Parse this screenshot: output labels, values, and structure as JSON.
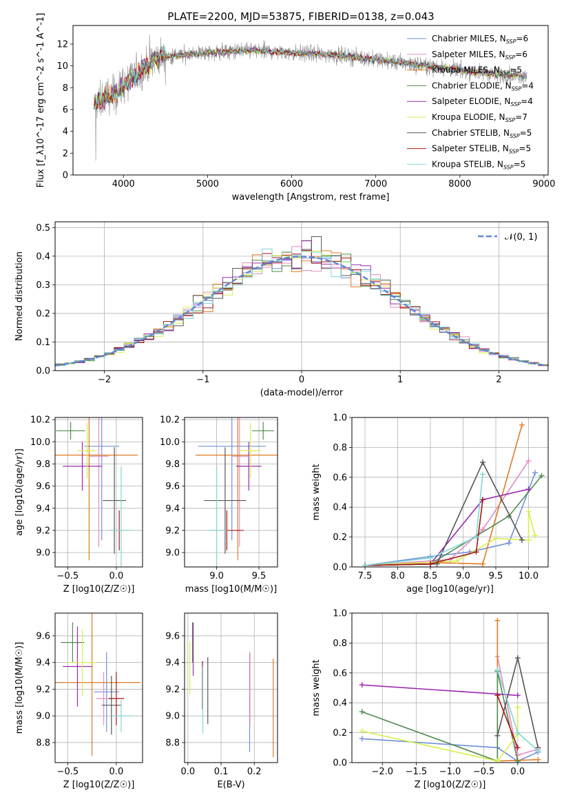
{
  "figure": {
    "title": "PLATE=2200, MJD=53875, FIBERID=0138, z=0.043"
  },
  "legend": [
    {
      "label": "Chabrier MILES, N_SSP=6",
      "color": "#6f8fd9"
    },
    {
      "label": "Salpeter MILES, N_SSP=6",
      "color": "#e28bc2"
    },
    {
      "label": "Kroupa MILES, N_SSP=5",
      "color": "#e07a20"
    },
    {
      "label": "Chabrier ELODIE, N_SSP=4",
      "color": "#4f8a4f"
    },
    {
      "label": "Salpeter ELODIE, N_SSP=4",
      "color": "#9b27b0"
    },
    {
      "label": "Kroupa ELODIE, N_SSP=7",
      "color": "#d6ef4a"
    },
    {
      "label": "Chabrier STELIB, N_SSP=5",
      "color": "#555555"
    },
    {
      "label": "Salpeter STELIB, N_SSP=5",
      "color": "#a31515"
    },
    {
      "label": "Kroupa STELIB, N_SSP=5",
      "color": "#7ed7d3"
    }
  ],
  "chart_data": [
    {
      "id": "spectrum",
      "type": "line",
      "xlabel": "wavelength [Angstrom, rest frame]",
      "ylabel": "Flux [f_λ10^-17 erg cm^-2 s^-1 A^-1]",
      "xlim": [
        3400,
        9050
      ],
      "ylim": [
        0,
        13.7
      ],
      "xticks": [
        4000,
        5000,
        6000,
        7000,
        8000,
        9000
      ],
      "yticks": [
        0,
        2,
        4,
        6,
        8,
        10,
        12
      ],
      "observed_color": "#8a8a8a",
      "observed_range": [
        3650,
        8800
      ],
      "continuum": [
        [
          3650,
          6.5
        ],
        [
          3900,
          7.5
        ],
        [
          4100,
          8.8
        ],
        [
          4400,
          10.8
        ],
        [
          4700,
          11.0
        ],
        [
          5000,
          11.2
        ],
        [
          5500,
          11.4
        ],
        [
          6000,
          11.2
        ],
        [
          6500,
          11.0
        ],
        [
          7000,
          10.6
        ],
        [
          7500,
          10.1
        ],
        [
          8000,
          9.6
        ],
        [
          8500,
          9.2
        ],
        [
          8800,
          9.1
        ]
      ]
    },
    {
      "id": "residuals",
      "type": "line",
      "xlabel": "(data-model)/error",
      "ylabel": "Normed distribution",
      "xlim": [
        -2.5,
        2.5
      ],
      "ylim": [
        0,
        0.52
      ],
      "xticks": [
        -2,
        -1,
        0,
        1,
        2
      ],
      "yticks": [
        0.0,
        0.1,
        0.2,
        0.3,
        0.4,
        0.5
      ],
      "reference_label": "𝒩(0, 1)",
      "reference_color": "#5b84d6"
    },
    {
      "id": "age-Z",
      "type": "scatter",
      "xlabel": "Z [log10(Z/Z☉)]",
      "ylabel": "age  [log10(age/yr)]",
      "xlim": [
        -0.63,
        0.27
      ],
      "ylim": [
        8.87,
        10.22
      ],
      "xticks": [
        -0.5,
        0.0
      ],
      "yticks": [
        9.0,
        9.2,
        9.4,
        9.6,
        9.8,
        10.0,
        10.2
      ],
      "points": [
        {
          "x": -0.15,
          "y": 9.96,
          "xerr": 0.18,
          "yerr": 0.85
        },
        {
          "x": -0.18,
          "y": 9.87,
          "xerr": 0.1,
          "yerr": 0.82
        },
        {
          "x": -0.28,
          "y": 9.88,
          "xerr": 0.5,
          "yerr": 0.95
        },
        {
          "x": -0.47,
          "y": 10.1,
          "xerr": 0.15,
          "yerr": 0.08
        },
        {
          "x": -0.35,
          "y": 9.78,
          "xerr": 0.2,
          "yerr": 0.22
        },
        {
          "x": -0.3,
          "y": 9.92,
          "xerr": 0.1,
          "yerr": 0.25
        },
        {
          "x": -0.02,
          "y": 9.47,
          "xerr": 0.12,
          "yerr": 0.48
        },
        {
          "x": 0.03,
          "y": 9.2,
          "xerr": 0.1,
          "yerr": 0.18
        },
        {
          "x": 0.05,
          "y": 9.2,
          "xerr": 0.12,
          "yerr": 0.58
        }
      ]
    },
    {
      "id": "age-mass",
      "type": "scatter",
      "xlabel": "mass [log10(M/M☉)]",
      "ylabel": "",
      "xlim": [
        8.62,
        9.72
      ],
      "ylim": [
        8.87,
        10.22
      ],
      "xticks": [
        9.0,
        9.5
      ],
      "yticks": [
        9.0,
        9.2,
        9.4,
        9.6,
        9.8,
        10.0,
        10.2
      ],
      "points": [
        {
          "x": 9.18,
          "y": 9.96,
          "xerr": 0.4,
          "yerr": 0.85
        },
        {
          "x": 9.27,
          "y": 9.87,
          "xerr": 0.1,
          "yerr": 0.82
        },
        {
          "x": 9.25,
          "y": 9.88,
          "xerr": 0.5,
          "yerr": 0.95
        },
        {
          "x": 9.55,
          "y": 10.1,
          "xerr": 0.13,
          "yerr": 0.08
        },
        {
          "x": 9.38,
          "y": 9.78,
          "xerr": 0.15,
          "yerr": 0.22
        },
        {
          "x": 9.4,
          "y": 9.92,
          "xerr": 0.12,
          "yerr": 0.25
        },
        {
          "x": 9.1,
          "y": 9.47,
          "xerr": 0.25,
          "yerr": 0.48
        },
        {
          "x": 9.12,
          "y": 9.2,
          "xerr": 0.2,
          "yerr": 0.18
        },
        {
          "x": 9.0,
          "y": 9.2,
          "xerr": 0.12,
          "yerr": 0.58
        }
      ]
    },
    {
      "id": "weight-age",
      "type": "line",
      "xlabel": "age  [log10(age/yr)]",
      "ylabel": "mass weight",
      "xlim": [
        7.3,
        10.3
      ],
      "ylim": [
        0,
        1.0
      ],
      "xticks": [
        7.5,
        8.0,
        8.5,
        9.0,
        9.5,
        10.0
      ],
      "yticks": [
        0.0,
        0.2,
        0.4,
        0.6,
        0.8,
        1.0
      ],
      "series": [
        {
          "x": [
            7.5,
            8.5,
            9.1,
            9.7,
            10.1
          ],
          "y": [
            0.01,
            0.07,
            0.1,
            0.16,
            0.63
          ]
        },
        {
          "x": [
            7.5,
            8.8,
            9.3,
            10.0
          ],
          "y": [
            0.01,
            0.05,
            0.25,
            0.71
          ]
        },
        {
          "x": [
            7.5,
            8.5,
            9.3,
            9.9
          ],
          "y": [
            0.01,
            0.03,
            0.02,
            0.95
          ]
        },
        {
          "x": [
            7.5,
            8.5,
            9.7,
            10.2
          ],
          "y": [
            0.01,
            0.02,
            0.34,
            0.61
          ]
        },
        {
          "x": [
            7.5,
            8.5,
            9.3,
            10.0
          ],
          "y": [
            0.01,
            0.02,
            0.45,
            0.52
          ]
        },
        {
          "x": [
            7.5,
            8.9,
            9.5,
            10.0,
            10.0,
            10.1
          ],
          "y": [
            0.01,
            0.04,
            0.19,
            0.18,
            0.37,
            0.21
          ]
        },
        {
          "x": [
            7.5,
            8.6,
            9.3,
            9.9
          ],
          "y": [
            0.01,
            0.02,
            0.7,
            0.18
          ]
        },
        {
          "x": [
            7.5,
            8.5,
            9.2,
            9.3
          ],
          "y": [
            0.01,
            0.02,
            0.1,
            0.45
          ]
        },
        {
          "x": [
            7.5,
            8.5,
            9.2,
            9.3
          ],
          "y": [
            0.01,
            0.06,
            0.2,
            0.62
          ]
        }
      ]
    },
    {
      "id": "mass-Z",
      "type": "scatter",
      "xlabel": "Z [log10(Z/Z☉)]",
      "ylabel": "mass [log10(M/M☉)]",
      "xlim": [
        -0.63,
        0.27
      ],
      "ylim": [
        8.65,
        9.77
      ],
      "xticks": [
        -0.5,
        0.0
      ],
      "yticks": [
        8.8,
        9.0,
        9.2,
        9.4,
        9.6
      ],
      "points": [
        {
          "x": -0.1,
          "y": 9.18,
          "xerr": 0.13,
          "yerr": 0.3
        },
        {
          "x": -0.13,
          "y": 9.13,
          "xerr": 0.08,
          "yerr": 0.2
        },
        {
          "x": -0.25,
          "y": 9.25,
          "xerr": 0.5,
          "yerr": 0.55
        },
        {
          "x": -0.45,
          "y": 9.55,
          "xerr": 0.12,
          "yerr": 0.15
        },
        {
          "x": -0.4,
          "y": 9.37,
          "xerr": 0.15,
          "yerr": 0.3
        },
        {
          "x": -0.35,
          "y": 9.4,
          "xerr": 0.15,
          "yerr": 0.25
        },
        {
          "x": -0.05,
          "y": 9.08,
          "xerr": 0.1,
          "yerr": 0.22
        },
        {
          "x": 0.0,
          "y": 9.13,
          "xerr": 0.08,
          "yerr": 0.2
        },
        {
          "x": 0.05,
          "y": 9.0,
          "xerr": 0.1,
          "yerr": 0.12
        }
      ]
    },
    {
      "id": "mass-ebv",
      "type": "scatter",
      "xlabel": "E(B-V)",
      "ylabel": "",
      "xlim": [
        -0.01,
        0.27
      ],
      "ylim": [
        8.65,
        9.77
      ],
      "xticks": [
        0.0,
        0.1,
        0.2
      ],
      "yticks": [
        8.8,
        9.0,
        9.2,
        9.4,
        9.6
      ],
      "points": [
        {
          "x": 0.186,
          "y": 9.1,
          "xerr": 0.0,
          "yerr": 0.37
        },
        {
          "x": 0.187,
          "y": 9.2,
          "xerr": 0.0,
          "yerr": 0.28
        },
        {
          "x": 0.257,
          "y": 9.06,
          "xerr": 0.0,
          "yerr": 0.37
        },
        {
          "x": 0.014,
          "y": 9.55,
          "xerr": 0.0,
          "yerr": 0.15
        },
        {
          "x": 0.016,
          "y": 9.5,
          "xerr": 0.0,
          "yerr": 0.2
        },
        {
          "x": 0.006,
          "y": 9.36,
          "xerr": 0.0,
          "yerr": 0.2
        },
        {
          "x": 0.06,
          "y": 9.19,
          "xerr": 0.0,
          "yerr": 0.25
        },
        {
          "x": 0.044,
          "y": 9.23,
          "xerr": 0.0,
          "yerr": 0.18
        },
        {
          "x": 0.045,
          "y": 9.12,
          "xerr": 0.0,
          "yerr": 0.25
        }
      ]
    },
    {
      "id": "weight-Z",
      "type": "line",
      "xlabel": "Z [log10(Z/Z☉)]",
      "ylabel": "mass weight",
      "xlim": [
        -2.45,
        0.45
      ],
      "ylim": [
        0,
        1.0
      ],
      "xticks": [
        -2.0,
        -1.5,
        -1.0,
        -0.5,
        0.0
      ],
      "yticks": [
        0.0,
        0.2,
        0.4,
        0.6,
        0.8,
        1.0
      ],
      "series": [
        {
          "x": [
            -2.3,
            -0.3,
            0.0,
            0.3
          ],
          "y": [
            0.16,
            0.1,
            0.01,
            0.07
          ]
        },
        {
          "x": [
            -0.3,
            0.0,
            0.3
          ],
          "y": [
            0.71,
            0.05,
            0.09
          ]
        },
        {
          "x": [
            -0.3,
            -0.3,
            0.3
          ],
          "y": [
            0.95,
            0.01,
            0.02
          ]
        },
        {
          "x": [
            -2.3,
            -0.3,
            -0.3,
            0.0
          ],
          "y": [
            0.34,
            0.01,
            0.61,
            0.01
          ]
        },
        {
          "x": [
            -2.3,
            0.0
          ],
          "y": [
            0.52,
            0.45
          ]
        },
        {
          "x": [
            -2.3,
            -0.3,
            0.0,
            0.0
          ],
          "y": [
            0.21,
            0.01,
            0.19,
            0.37
          ]
        },
        {
          "x": [
            -0.3,
            0.0,
            0.3
          ],
          "y": [
            0.18,
            0.7,
            0.1
          ]
        },
        {
          "x": [
            -0.3,
            0.0
          ],
          "y": [
            0.45,
            0.1
          ]
        },
        {
          "x": [
            -0.3,
            0.0,
            0.3
          ],
          "y": [
            0.62,
            0.2,
            0.08
          ]
        }
      ]
    }
  ]
}
